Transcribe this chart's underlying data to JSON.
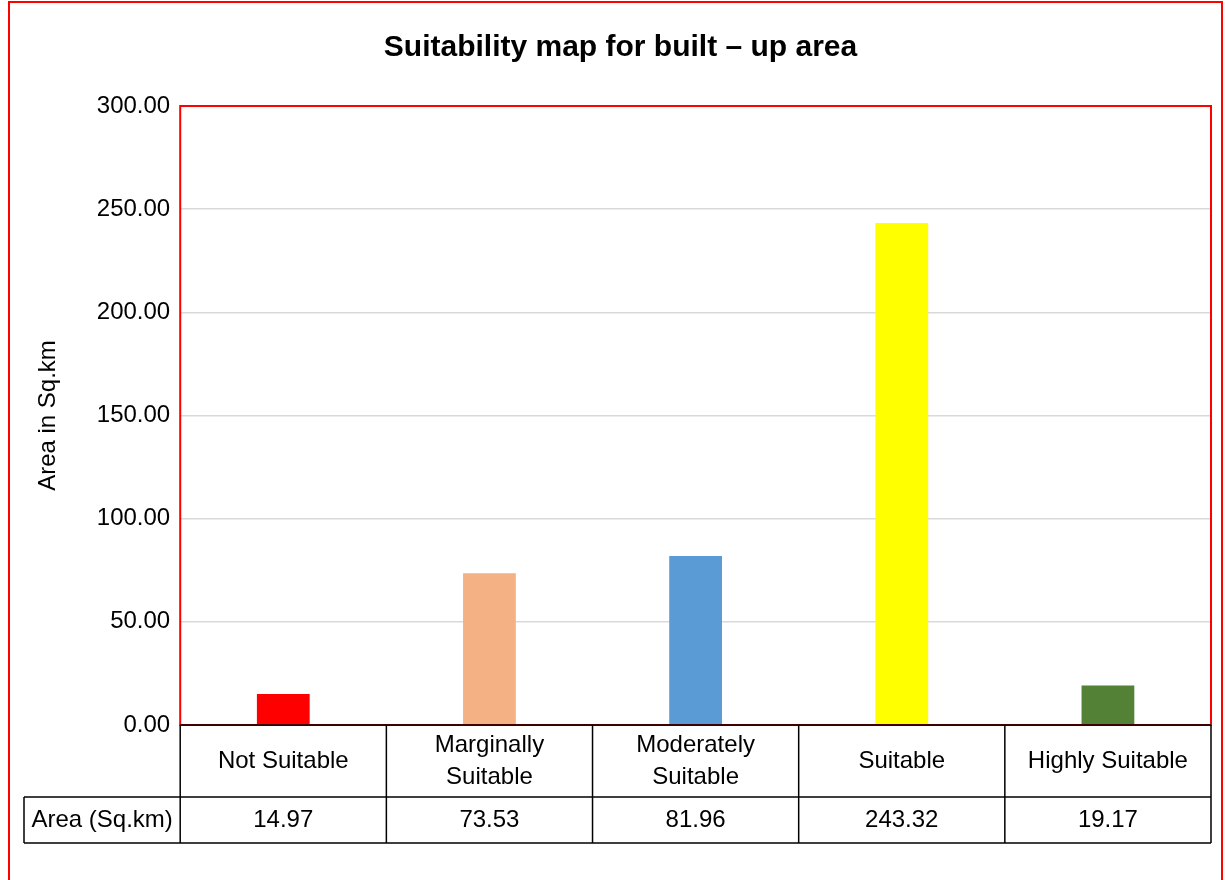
{
  "chart_data": {
    "type": "bar",
    "title": "Suitability map for built – up area",
    "ylabel": "Area in Sq.km",
    "categories": [
      "Not Suitable",
      "Marginally Suitable",
      "Moderately Suitable",
      "Suitable",
      "Highly Suitable"
    ],
    "series": [
      {
        "name": "Area (Sq.km)",
        "colors": [
          "#ff0000",
          "#f4b183",
          "#5b9bd5",
          "#ffff00",
          "#538135"
        ],
        "values": [
          14.97,
          73.53,
          81.96,
          243.32,
          19.17
        ]
      }
    ],
    "ylim": [
      0,
      300
    ],
    "yticks": [
      {
        "value": 0,
        "label": "0.00"
      },
      {
        "value": 50,
        "label": "50.00"
      },
      {
        "value": 100,
        "label": "100.00"
      },
      {
        "value": 150,
        "label": "150.00"
      },
      {
        "value": 200,
        "label": "200.00"
      },
      {
        "value": 250,
        "label": "250.00"
      },
      {
        "value": 300,
        "label": "300.00"
      }
    ],
    "grid": "y",
    "legend": false,
    "data_labels": true
  }
}
